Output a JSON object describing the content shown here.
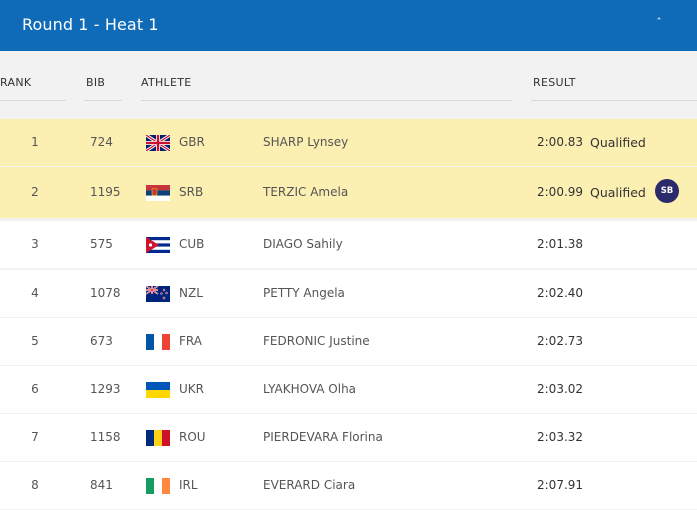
{
  "header": {
    "title": "Round 1 - Heat 1",
    "toggle_glyph": "ˆ"
  },
  "columns": {
    "rank": "RANK",
    "bib": "BIB",
    "athlete": "ATHLETE",
    "result": "RESULT"
  },
  "rows": [
    {
      "rank": "1",
      "bib": "724",
      "noc": "GBR",
      "flag": "gbr-flag-icon",
      "name": "SHARP Lynsey",
      "result": "2:00.83",
      "status": "Qualified",
      "badge": ""
    },
    {
      "rank": "2",
      "bib": "1195",
      "noc": "SRB",
      "flag": "srb-flag-icon",
      "name": "TERZIC Amela",
      "result": "2:00.99",
      "status": "Qualified",
      "badge": "SB"
    },
    {
      "rank": "3",
      "bib": "575",
      "noc": "CUB",
      "flag": "cub-flag-icon",
      "name": "DIAGO Sahily",
      "result": "2:01.38",
      "status": "",
      "badge": ""
    },
    {
      "rank": "4",
      "bib": "1078",
      "noc": "NZL",
      "flag": "nzl-flag-icon",
      "name": "PETTY Angela",
      "result": "2:02.40",
      "status": "",
      "badge": ""
    },
    {
      "rank": "5",
      "bib": "673",
      "noc": "FRA",
      "flag": "fra-flag-icon",
      "name": "FEDRONIC Justine",
      "result": "2:02.73",
      "status": "",
      "badge": ""
    },
    {
      "rank": "6",
      "bib": "1293",
      "noc": "UKR",
      "flag": "ukr-flag-icon",
      "name": "LYAKHOVA Olha",
      "result": "2:03.02",
      "status": "",
      "badge": ""
    },
    {
      "rank": "7",
      "bib": "1158",
      "noc": "ROU",
      "flag": "rou-flag-icon",
      "name": "PIERDEVARA Florina",
      "result": "2:03.32",
      "status": "",
      "badge": ""
    },
    {
      "rank": "8",
      "bib": "841",
      "noc": "IRL",
      "flag": "irl-flag-icon",
      "name": "EVERARD Ciara",
      "result": "2:07.91",
      "status": "",
      "badge": ""
    }
  ],
  "colors": {
    "header_bg": "#0f6bb7",
    "qualified_row": "#fcefb2",
    "sb_badge": "#2b2a6b"
  }
}
